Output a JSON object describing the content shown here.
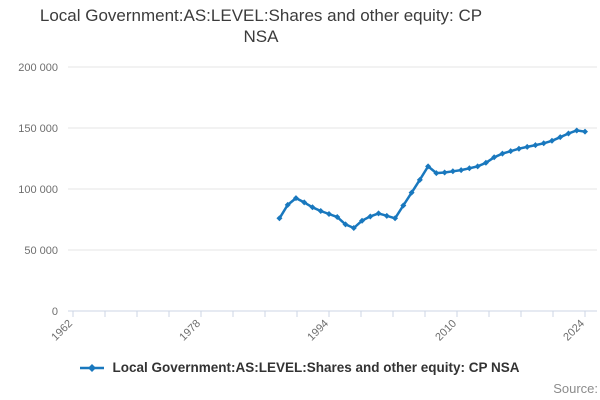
{
  "chart_data": {
    "type": "line",
    "title": "Local Government:AS:LEVEL:Shares and other equity: CP NSA",
    "title_lines": [
      "Local Government:AS:LEVEL:Shares and other equity: CP",
      "NSA"
    ],
    "x_axis": {
      "start_year": 1962,
      "end_year": 2024,
      "tick_count": 17,
      "tick_interval_years": 4,
      "tick_labels": [
        "1962",
        "1978",
        "1994",
        "2010",
        "2024"
      ],
      "labeled_tick_indices": [
        0,
        4,
        8,
        12,
        16
      ]
    },
    "y_axis": {
      "min": 0,
      "max": 200000,
      "ticks": [
        {
          "value": 0,
          "label": "0"
        },
        {
          "value": 50000,
          "label": "50 000"
        },
        {
          "value": 100000,
          "label": "100 000"
        },
        {
          "value": 150000,
          "label": "150 000"
        },
        {
          "value": 200000,
          "label": "200 000"
        }
      ]
    },
    "grid": "horizontal",
    "legend_position": "bottom",
    "series": [
      {
        "name": "Local Government:AS:LEVEL:Shares and other equity: CP NSA",
        "color": "#1978be",
        "marker": "diamond",
        "years": [
          1987,
          1988,
          1989,
          1990,
          1991,
          1992,
          1993,
          1994,
          1995,
          1996,
          1997,
          1998,
          1999,
          2000,
          2001,
          2002,
          2003,
          2004,
          2005,
          2006,
          2007,
          2008,
          2009,
          2010,
          2011,
          2012,
          2013,
          2014,
          2015,
          2016,
          2017,
          2018,
          2019,
          2020,
          2021,
          2022,
          2023,
          2024
        ],
        "values": [
          76000,
          87000,
          92500,
          89000,
          85000,
          82000,
          79500,
          77000,
          71000,
          68000,
          74000,
          77500,
          80000,
          78000,
          76000,
          86500,
          97000,
          107500,
          118500,
          113000,
          113500,
          114500,
          115500,
          117000,
          118500,
          121500,
          126000,
          129000,
          131000,
          133000,
          134500,
          136000,
          137500,
          139500,
          142500,
          145500,
          148000,
          147000
        ]
      }
    ]
  },
  "footer": {
    "source_label": "Source:"
  },
  "colors": {
    "line": "#1978be",
    "grid": "#e4e4e4",
    "axis": "#ccd6e4",
    "tick_label": "#6f6f6f",
    "title": "#3b3b3b",
    "legend_text": "#333333",
    "source_text": "#8c8c8c",
    "background": "#ffffff"
  }
}
